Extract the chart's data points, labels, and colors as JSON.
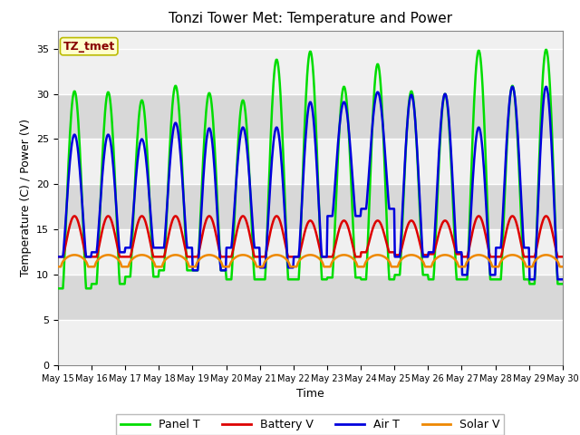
{
  "title": "Tonzi Tower Met: Temperature and Power",
  "xlabel": "Time",
  "ylabel": "Temperature (C) / Power (V)",
  "ylim": [
    0,
    37
  ],
  "yticks": [
    0,
    5,
    10,
    15,
    20,
    25,
    30,
    35
  ],
  "x_tick_labels": [
    "May 15",
    "May 16",
    "May 17",
    "May 18",
    "May 19",
    "May 20",
    "May 21",
    "May 22",
    "May 23",
    "May 24",
    "May 25",
    "May 26",
    "May 27",
    "May 28",
    "May 29",
    "May 30"
  ],
  "annotation_text": "TZ_tmet",
  "annotation_bg": "#ffffcc",
  "annotation_border": "#bbbb00",
  "annotation_text_color": "#880000",
  "plot_bg_light": "#f0f0f0",
  "plot_bg_dark": "#d8d8d8",
  "grid_color": "#ffffff",
  "series": {
    "panel_t": {
      "label": "Panel T",
      "color": "#00dd00",
      "linewidth": 1.8
    },
    "battery_v": {
      "label": "Battery V",
      "color": "#dd0000",
      "linewidth": 1.8
    },
    "air_t": {
      "label": "Air T",
      "color": "#0000dd",
      "linewidth": 1.8
    },
    "solar_v": {
      "label": "Solar V",
      "color": "#ee8800",
      "linewidth": 1.8
    }
  },
  "panel_peaks": [
    30.3,
    30.2,
    29.3,
    30.9,
    30.1,
    29.3,
    33.8,
    34.7,
    30.8,
    33.3,
    30.3,
    30.0,
    34.8,
    30.9,
    34.9
  ],
  "panel_mins": [
    8.5,
    9.0,
    9.8,
    10.5,
    10.5,
    9.5,
    9.5,
    9.5,
    9.7,
    9.5,
    10.0,
    9.5,
    9.5,
    9.5,
    9.0
  ],
  "air_peaks": [
    25.5,
    25.5,
    25.0,
    26.8,
    26.2,
    26.3,
    26.3,
    29.1,
    29.1,
    30.2,
    29.9,
    30.0,
    26.3,
    30.8,
    30.8
  ],
  "air_mins": [
    12.0,
    12.5,
    13.0,
    13.0,
    10.5,
    13.0,
    10.8,
    12.0,
    16.5,
    17.3,
    12.0,
    12.5,
    10.0,
    13.0,
    9.5
  ],
  "batt_peaks": [
    16.5,
    16.5,
    16.5,
    16.5,
    16.5,
    16.5,
    16.5,
    16.0,
    16.0,
    16.0,
    16.0,
    16.0,
    16.5,
    16.5,
    16.5
  ],
  "batt_mins": [
    12.0,
    12.0,
    12.0,
    12.0,
    12.0,
    12.0,
    12.0,
    12.0,
    12.0,
    12.5,
    12.2,
    12.3,
    12.0,
    12.0,
    12.0
  ]
}
